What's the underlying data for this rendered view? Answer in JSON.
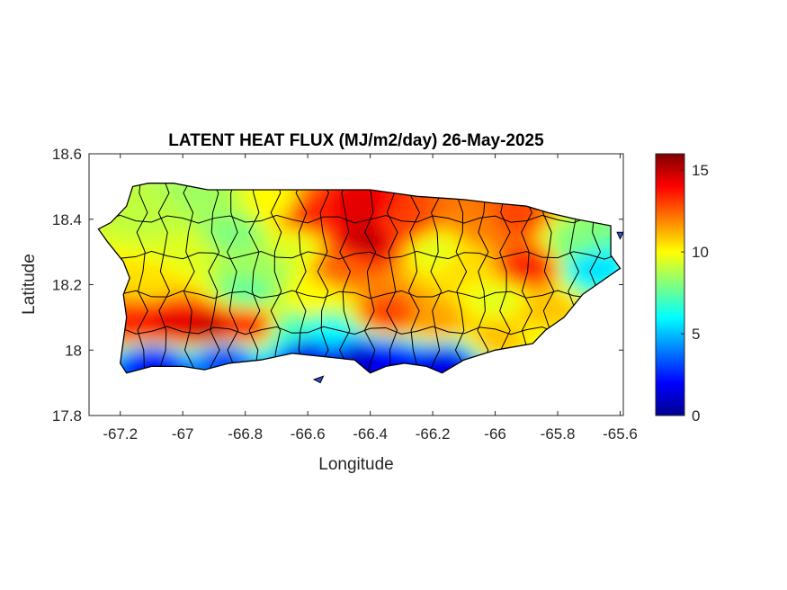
{
  "figure": {
    "title": "LATENT HEAT FLUX (MJ/m2/day) 26-May-2025"
  },
  "chart_data": {
    "type": "heatmap",
    "title": "LATENT HEAT FLUX (MJ/m2/day) 26-May-2025",
    "xlabel": "Longitude",
    "ylabel": "Latitude",
    "xlim": [
      -67.3,
      -65.59
    ],
    "ylim": [
      17.8,
      18.6
    ],
    "xticks": [
      -67.2,
      -67,
      -66.8,
      -66.6,
      -66.4,
      -66.2,
      -66,
      -65.8,
      -65.6
    ],
    "xtick_labels": [
      "-67.2",
      "-67",
      "-66.8",
      "-66.6",
      "-66.4",
      "-66.2",
      "-66",
      "-65.8",
      "-65.6"
    ],
    "yticks": [
      17.8,
      18,
      18.2,
      18.4,
      18.6
    ],
    "ytick_labels": [
      "17.8",
      "18",
      "18.2",
      "18.4",
      "18.6"
    ],
    "colorbar": {
      "colormap": "jet",
      "range": [
        0,
        16
      ],
      "ticks": [
        0,
        5,
        10,
        15
      ],
      "tick_labels": [
        "0",
        "5",
        "10",
        "15"
      ]
    },
    "grid": false,
    "island_outline_lonlat": [
      [
        -67.27,
        18.37
      ],
      [
        -67.23,
        18.39
      ],
      [
        -67.18,
        18.44
      ],
      [
        -67.16,
        18.5
      ],
      [
        -67.11,
        18.51
      ],
      [
        -67.03,
        18.51
      ],
      [
        -66.92,
        18.49
      ],
      [
        -66.8,
        18.49
      ],
      [
        -66.65,
        18.49
      ],
      [
        -66.55,
        18.49
      ],
      [
        -66.4,
        18.49
      ],
      [
        -66.25,
        18.47
      ],
      [
        -66.1,
        18.46
      ],
      [
        -66.01,
        18.45
      ],
      [
        -65.9,
        18.44
      ],
      [
        -65.83,
        18.42
      ],
      [
        -65.74,
        18.4
      ],
      [
        -65.63,
        18.38
      ],
      [
        -65.63,
        18.29
      ],
      [
        -65.6,
        18.25
      ],
      [
        -65.66,
        18.21
      ],
      [
        -65.72,
        18.17
      ],
      [
        -65.78,
        18.1
      ],
      [
        -65.84,
        18.06
      ],
      [
        -65.88,
        18.02
      ],
      [
        -66.0,
        18.0
      ],
      [
        -66.1,
        17.97
      ],
      [
        -66.17,
        17.93
      ],
      [
        -66.22,
        17.95
      ],
      [
        -66.29,
        17.96
      ],
      [
        -66.35,
        17.95
      ],
      [
        -66.4,
        17.93
      ],
      [
        -66.45,
        17.97
      ],
      [
        -66.55,
        17.98
      ],
      [
        -66.65,
        17.99
      ],
      [
        -66.75,
        17.97
      ],
      [
        -66.85,
        17.96
      ],
      [
        -66.93,
        17.94
      ],
      [
        -67.0,
        17.95
      ],
      [
        -67.1,
        17.95
      ],
      [
        -67.18,
        17.93
      ],
      [
        -67.2,
        17.96
      ],
      [
        -67.19,
        18.03
      ],
      [
        -67.18,
        18.1
      ],
      [
        -67.19,
        18.17
      ],
      [
        -67.17,
        18.22
      ],
      [
        -67.19,
        18.27
      ],
      [
        -67.24,
        18.33
      ]
    ],
    "small_islands_lonlat": [
      [
        [
          -66.58,
          17.91
        ],
        [
          -66.55,
          17.92
        ],
        [
          -66.56,
          17.9
        ]
      ],
      [
        [
          -65.61,
          18.36
        ],
        [
          -65.59,
          18.36
        ],
        [
          -65.6,
          18.34
        ]
      ]
    ],
    "value_field": [
      {
        "lon": -67.05,
        "lat": 18.07,
        "value": 14.5
      },
      {
        "lon": -66.92,
        "lat": 18.06,
        "value": 15.0
      },
      {
        "lon": -67.15,
        "lat": 18.07,
        "value": 13.5
      },
      {
        "lon": -66.8,
        "lat": 18.07,
        "value": 13.5
      },
      {
        "lon": -67.1,
        "lat": 17.96,
        "value": 2.0
      },
      {
        "lon": -66.88,
        "lat": 17.97,
        "value": 3.0
      },
      {
        "lon": -66.6,
        "lat": 17.99,
        "value": 1.5
      },
      {
        "lon": -66.45,
        "lat": 17.96,
        "value": 1.0
      },
      {
        "lon": -66.35,
        "lat": 17.96,
        "value": 2.0
      },
      {
        "lon": -66.17,
        "lat": 17.95,
        "value": 1.5
      },
      {
        "lon": -66.42,
        "lat": 18.33,
        "value": 15.0
      },
      {
        "lon": -66.45,
        "lat": 18.43,
        "value": 14.5
      },
      {
        "lon": -66.6,
        "lat": 18.42,
        "value": 13.5
      },
      {
        "lon": -66.3,
        "lat": 18.38,
        "value": 13.0
      },
      {
        "lon": -66.5,
        "lat": 18.25,
        "value": 12.5
      },
      {
        "lon": -66.35,
        "lat": 18.1,
        "value": 13.0
      },
      {
        "lon": -66.2,
        "lat": 18.08,
        "value": 11.5
      },
      {
        "lon": -66.05,
        "lat": 18.38,
        "value": 12.0
      },
      {
        "lon": -65.9,
        "lat": 18.25,
        "value": 13.5
      },
      {
        "lon": -65.95,
        "lat": 18.4,
        "value": 13.0
      },
      {
        "lon": -65.75,
        "lat": 18.33,
        "value": 8.0
      },
      {
        "lon": -65.7,
        "lat": 18.25,
        "value": 5.5
      },
      {
        "lon": -65.85,
        "lat": 18.1,
        "value": 11.0
      },
      {
        "lon": -66.0,
        "lat": 18.15,
        "value": 9.5
      },
      {
        "lon": -66.1,
        "lat": 18.25,
        "value": 10.5
      },
      {
        "lon": -66.2,
        "lat": 18.3,
        "value": 9.5
      },
      {
        "lon": -67.1,
        "lat": 18.4,
        "value": 9.0
      },
      {
        "lon": -67.0,
        "lat": 18.3,
        "value": 9.5
      },
      {
        "lon": -66.85,
        "lat": 18.35,
        "value": 8.0
      },
      {
        "lon": -66.75,
        "lat": 18.25,
        "value": 8.5
      },
      {
        "lon": -67.12,
        "lat": 18.2,
        "value": 10.5
      },
      {
        "lon": -66.95,
        "lat": 18.47,
        "value": 8.5
      },
      {
        "lon": -66.7,
        "lat": 18.45,
        "value": 10.0
      },
      {
        "lon": -66.65,
        "lat": 18.3,
        "value": 9.5
      },
      {
        "lon": -66.8,
        "lat": 18.17,
        "value": 7.5
      },
      {
        "lon": -66.6,
        "lat": 18.15,
        "value": 10.0
      },
      {
        "lon": -66.65,
        "lat": 18.05,
        "value": 7.0
      },
      {
        "lon": -66.55,
        "lat": 18.04,
        "value": 6.0
      },
      {
        "lon": -66.0,
        "lat": 18.03,
        "value": 11.0
      },
      {
        "lon": -65.85,
        "lat": 18.04,
        "value": 10.0
      }
    ]
  }
}
